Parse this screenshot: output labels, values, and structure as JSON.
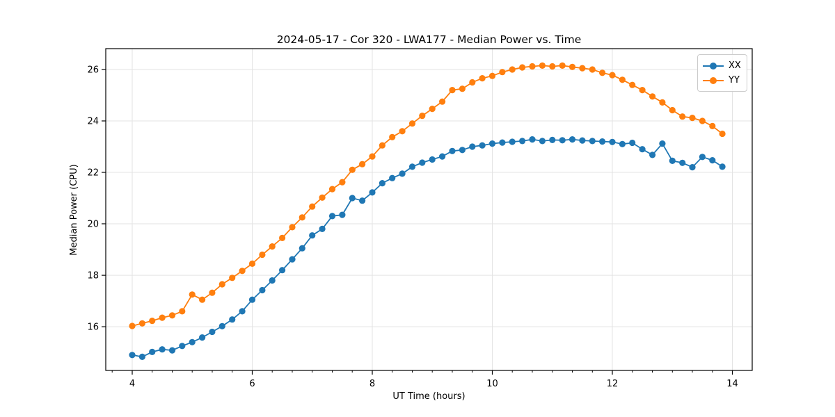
{
  "chart_data": {
    "type": "line",
    "title": "2024-05-17 - Cor 320 - LWA177 - Median Power vs. Time",
    "xlabel": "UT Time (hours)",
    "ylabel": "Median Power (CPU)",
    "xlim": [
      3.56,
      14.33
    ],
    "ylim": [
      14.3,
      26.81
    ],
    "xticks": [
      4,
      6,
      8,
      10,
      12,
      14
    ],
    "yticks": [
      16,
      18,
      20,
      22,
      24,
      26
    ],
    "minor_xtick_step": 0.33333,
    "grid": true,
    "legend_position": "upper right",
    "marker": "circle",
    "x": [
      4.0,
      4.167,
      4.333,
      4.5,
      4.667,
      4.833,
      5.0,
      5.167,
      5.333,
      5.5,
      5.667,
      5.833,
      6.0,
      6.167,
      6.333,
      6.5,
      6.667,
      6.833,
      7.0,
      7.167,
      7.333,
      7.5,
      7.667,
      7.833,
      8.0,
      8.167,
      8.333,
      8.5,
      8.667,
      8.833,
      9.0,
      9.167,
      9.333,
      9.5,
      9.667,
      9.833,
      10.0,
      10.167,
      10.333,
      10.5,
      10.667,
      10.833,
      11.0,
      11.167,
      11.333,
      11.5,
      11.667,
      11.833,
      12.0,
      12.167,
      12.333,
      12.5,
      12.667,
      12.833,
      13.0,
      13.167,
      13.333,
      13.5,
      13.667,
      13.833
    ],
    "series": [
      {
        "name": "XX",
        "color": "#1f77b4",
        "values": [
          14.9,
          14.83,
          15.02,
          15.12,
          15.08,
          15.25,
          15.4,
          15.58,
          15.8,
          16.02,
          16.28,
          16.6,
          17.05,
          17.42,
          17.8,
          18.2,
          18.62,
          19.05,
          19.55,
          19.8,
          20.3,
          20.35,
          21.0,
          20.9,
          21.22,
          21.58,
          21.78,
          21.95,
          22.22,
          22.38,
          22.5,
          22.62,
          22.83,
          22.87,
          23.0,
          23.05,
          23.12,
          23.16,
          23.19,
          23.22,
          23.28,
          23.22,
          23.26,
          23.25,
          23.28,
          23.24,
          23.22,
          23.2,
          23.18,
          23.1,
          23.15,
          22.9,
          22.68,
          23.12,
          22.45,
          22.37,
          22.2,
          22.6,
          22.47,
          22.22
        ]
      },
      {
        "name": "YY",
        "color": "#ff7f0e",
        "values": [
          16.03,
          16.13,
          16.23,
          16.35,
          16.44,
          16.6,
          17.25,
          17.05,
          17.32,
          17.65,
          17.9,
          18.17,
          18.45,
          18.8,
          19.12,
          19.45,
          19.87,
          20.25,
          20.67,
          21.02,
          21.35,
          21.62,
          22.1,
          22.32,
          22.62,
          23.05,
          23.37,
          23.6,
          23.9,
          24.2,
          24.47,
          24.75,
          25.2,
          25.25,
          25.5,
          25.66,
          25.75,
          25.9,
          26.0,
          26.08,
          26.12,
          26.15,
          26.12,
          26.15,
          26.1,
          26.05,
          26.0,
          25.87,
          25.78,
          25.6,
          25.4,
          25.2,
          24.95,
          24.72,
          24.42,
          24.17,
          24.12,
          24.0,
          23.8,
          23.5
        ]
      }
    ]
  },
  "style": {
    "grid_color": "#e3e3e3",
    "spine_color": "#000000",
    "tick_color": "#000000",
    "background": "#ffffff"
  }
}
